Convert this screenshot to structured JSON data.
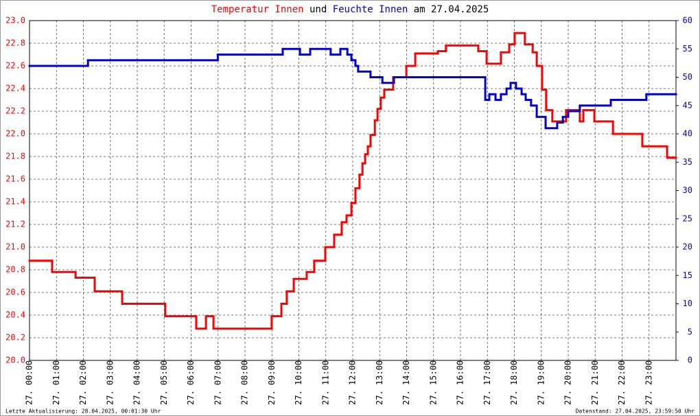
{
  "chart_data": {
    "type": "step-line",
    "title": [
      {
        "text": "Temperatur Innen",
        "color": "#ff0000"
      },
      {
        "text": "und",
        "color": "#000000"
      },
      {
        "text": "Feuchte Innen",
        "color": "#0000cc"
      },
      {
        "text": "am 27.04.2025",
        "color": "#000000"
      }
    ],
    "footer_left": "Letzte Aktualisierung: 28.04.2025, 00:01:30 Uhr",
    "footer_right": "Datenstand: 27.04.2025, 23:59:50 Uhr",
    "xlim": [
      0,
      24
    ],
    "xticks": [
      {
        "value": 0,
        "label": "27. 00:00"
      },
      {
        "value": 1,
        "label": "27. 01:00"
      },
      {
        "value": 2,
        "label": "27. 02:00"
      },
      {
        "value": 3,
        "label": "27. 03:00"
      },
      {
        "value": 4,
        "label": "27. 04:00"
      },
      {
        "value": 5,
        "label": "27. 05:00"
      },
      {
        "value": 6,
        "label": "27. 06:00"
      },
      {
        "value": 7,
        "label": "27. 07:00"
      },
      {
        "value": 8,
        "label": "27. 08:00"
      },
      {
        "value": 9,
        "label": "27. 09:00"
      },
      {
        "value": 10,
        "label": "27. 10:00"
      },
      {
        "value": 11,
        "label": "27. 11:00"
      },
      {
        "value": 12,
        "label": "27. 12:00"
      },
      {
        "value": 13,
        "label": "27. 13:00"
      },
      {
        "value": 14,
        "label": "27. 14:00"
      },
      {
        "value": 15,
        "label": "27. 15:00"
      },
      {
        "value": 16,
        "label": "27. 16:00"
      },
      {
        "value": 17,
        "label": "27. 17:00"
      },
      {
        "value": 18,
        "label": "27. 18:00"
      },
      {
        "value": 19,
        "label": "27. 19:00"
      },
      {
        "value": 20,
        "label": "27. 20:00"
      },
      {
        "value": 21,
        "label": "27. 21:00"
      },
      {
        "value": 22,
        "label": "27. 22:00"
      },
      {
        "value": 23,
        "label": "27. 23:00"
      }
    ],
    "ylim": [
      20,
      23
    ],
    "yticks": [
      {
        "value": 20,
        "label": "20.0"
      },
      20.2,
      20.4,
      20.6,
      20.8,
      {
        "value": 21,
        "label": "21.0"
      },
      21.2,
      21.4,
      21.6,
      21.8,
      {
        "value": 22,
        "label": "22.0"
      },
      22.2,
      22.4,
      22.6,
      22.8,
      {
        "value": 23,
        "label": "23.0"
      }
    ],
    "y2lim": [
      0,
      60
    ],
    "y2ticks": [
      0,
      5,
      10,
      15,
      20,
      25,
      30,
      35,
      40,
      45,
      50,
      55,
      60
    ],
    "ycolor": "#ff0000",
    "y2color": "#0000cc",
    "grid": true,
    "series": [
      {
        "name": "Temperatur Innen",
        "color": "#ff0000",
        "axis": "y",
        "x": [
          0,
          0.84,
          1.71,
          2.42,
          3.44,
          5.04,
          6.19,
          6.55,
          6.83,
          8.99,
          9.35,
          9.55,
          9.81,
          10.29,
          10.57,
          10.98,
          11.31,
          11.59,
          11.77,
          11.95,
          12.1,
          12.25,
          12.36,
          12.46,
          12.56,
          12.66,
          12.82,
          12.92,
          13.04,
          13.17,
          13.5,
          13.99,
          14.32,
          15.16,
          15.46,
          16.66,
          16.97,
          17.5,
          17.81,
          18.01,
          18.39,
          18.68,
          18.83,
          19.03,
          19.18,
          19.41,
          19.92,
          20.43,
          20.56,
          20.97,
          21.66,
          22.75,
          23.67
        ],
        "values": [
          20.88,
          20.78,
          20.73,
          20.61,
          20.5,
          20.39,
          20.28,
          20.39,
          20.28,
          20.39,
          20.5,
          20.61,
          20.72,
          20.78,
          20.88,
          21.0,
          21.11,
          21.22,
          21.28,
          21.39,
          21.52,
          21.64,
          21.74,
          21.82,
          21.89,
          21.99,
          22.12,
          22.22,
          22.32,
          22.39,
          22.5,
          22.6,
          22.71,
          22.73,
          22.78,
          22.73,
          22.62,
          22.72,
          22.79,
          22.89,
          22.79,
          22.72,
          22.6,
          22.39,
          22.21,
          22.11,
          22.21,
          22.11,
          22.21,
          22.11,
          22.0,
          21.89,
          21.79
        ]
      },
      {
        "name": "Feuchte Innen",
        "color": "#0000cc",
        "axis": "y2",
        "x": [
          0,
          2.17,
          6.99,
          9.4,
          10.04,
          10.42,
          11.18,
          11.54,
          11.8,
          11.95,
          12.1,
          12.2,
          12.66,
          13.1,
          13.53,
          16.92,
          17.07,
          17.3,
          17.5,
          17.71,
          17.86,
          18.06,
          18.27,
          18.42,
          18.62,
          18.83,
          19.16,
          19.59,
          19.8,
          20.0,
          20.43,
          21.58,
          22.9
        ],
        "values": [
          52,
          53,
          54,
          55,
          54,
          55,
          54,
          55,
          54,
          53,
          52,
          51,
          50,
          49,
          50,
          46,
          47,
          46,
          47,
          48,
          49,
          48,
          47,
          46,
          45,
          43,
          41,
          42,
          43,
          44,
          45,
          46,
          47
        ]
      }
    ]
  }
}
